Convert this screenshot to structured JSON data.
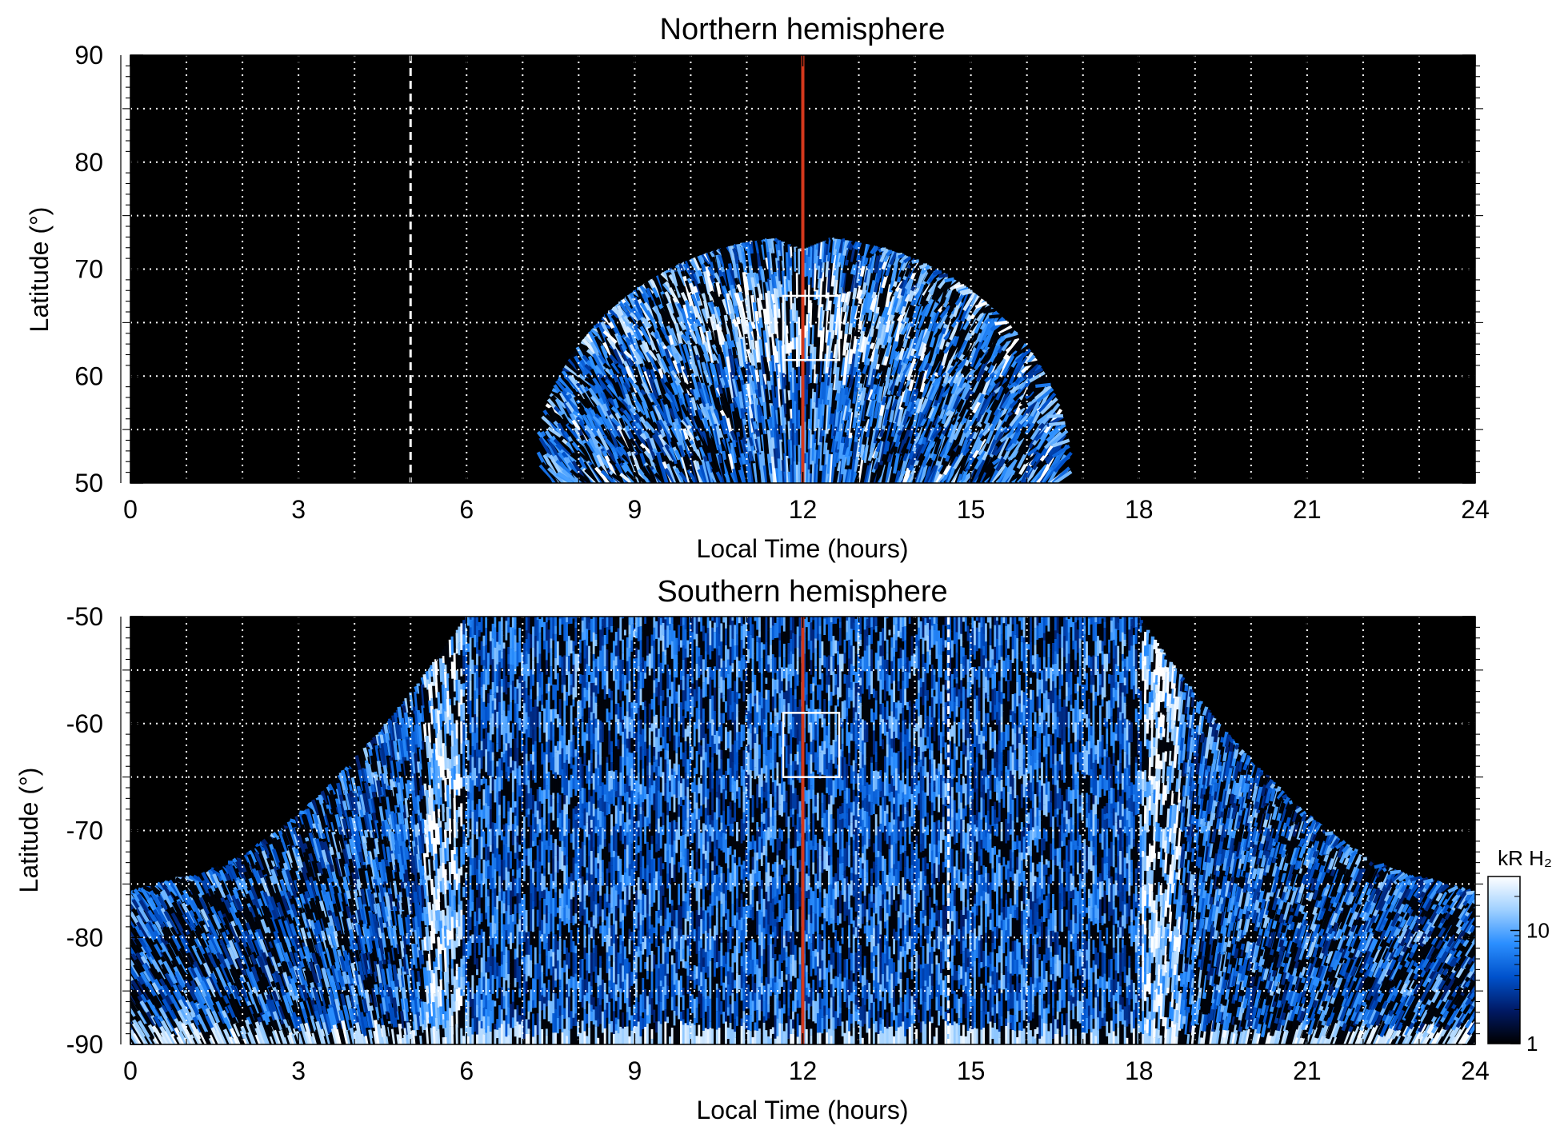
{
  "chart_data": [
    {
      "type": "heatmap",
      "title": "Northern hemisphere",
      "xlabel": "Local Time (hours)",
      "ylabel": "Latitude (°)",
      "xlim": [
        0,
        24
      ],
      "ylim": [
        50,
        90
      ],
      "xticks": [
        "0",
        "3",
        "6",
        "9",
        "12",
        "15",
        "18",
        "21",
        "24"
      ],
      "yticks": [
        "50",
        "60",
        "70",
        "80",
        "90"
      ],
      "grid": true,
      "grid_x_step_hours": 1,
      "grid_y_step_deg": 5,
      "background": "#000000",
      "emission_region": {
        "lt_min": 7.5,
        "lt_max": 16.7,
        "center_lt": 12,
        "outer_edge_lat_at_center": 73,
        "main_oval_lat": 65
      },
      "marker_lines": [
        {
          "lt": 12,
          "style": "solid",
          "color": "#d4391c"
        },
        {
          "lt": 5,
          "style": "dashed",
          "color": "#ffffff"
        }
      ],
      "box": {
        "lt_min": 11.65,
        "lt_max": 12.65,
        "lat_min": 61.5,
        "lat_max": 67.5
      }
    },
    {
      "type": "heatmap",
      "title": "Southern hemisphere",
      "xlabel": "Local Time (hours)",
      "ylabel": "Latitude (°)",
      "xlim": [
        0,
        24
      ],
      "ylim": [
        -90,
        -50
      ],
      "xticks": [
        "0",
        "3",
        "6",
        "9",
        "12",
        "15",
        "18",
        "21",
        "24"
      ],
      "yticks": [
        "-50",
        "-60",
        "-70",
        "-80",
        "-90"
      ],
      "grid": true,
      "grid_x_step_hours": 1,
      "grid_y_step_deg": 5,
      "background": "#000000",
      "emission_region": {
        "lt_min": 0,
        "lt_max": 24,
        "edge_lat_at_lt0": -76,
        "edge_lat_at_lt4": -66,
        "edge_lat_at_lt6_to_18": -50,
        "bright_arcs_lt": [
          5.6,
          18.4
        ]
      },
      "marker_lines": [
        {
          "lt": 12,
          "style": "solid",
          "color": "#d4391c"
        },
        {
          "lt": 14.6,
          "style": "dashed",
          "color": "#ffffff"
        }
      ],
      "box": {
        "lt_min": 11.65,
        "lt_max": 12.65,
        "lat_min": -65,
        "lat_max": -59
      }
    }
  ],
  "colorbar": {
    "label": "kR H₂",
    "scale": "log",
    "range": [
      1,
      30
    ],
    "ticks": [
      "1",
      "10"
    ],
    "colors": [
      "#000000",
      "#001a66",
      "#0052cc",
      "#2b8fff",
      "#9fd0ff",
      "#ffffff"
    ]
  }
}
